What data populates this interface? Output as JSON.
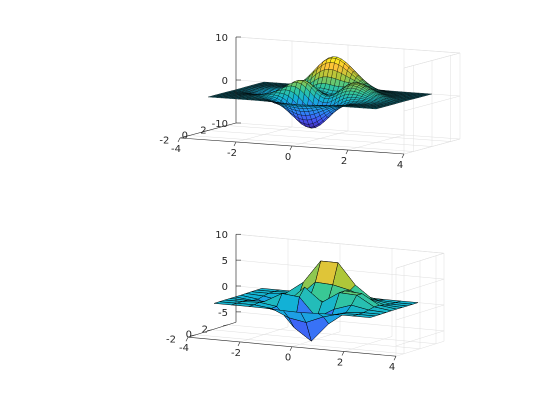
{
  "chart_data": [
    {
      "type": "surface",
      "title": "",
      "xlabel": "",
      "ylabel": "",
      "zlabel": "",
      "function": "peaks",
      "x_range": [
        -3,
        3
      ],
      "y_range": [
        -3,
        3
      ],
      "mesh_points": 40,
      "xlim": [
        -4,
        4
      ],
      "ylim": [
        -3,
        3
      ],
      "zlim": [
        -10,
        10
      ],
      "x_ticks": [
        -4,
        -2,
        0,
        2,
        4
      ],
      "y_ticks": [
        -2,
        0,
        2
      ],
      "z_ticks": [
        -10,
        0,
        10
      ],
      "x_tick_labels": [
        "-4",
        "-2",
        "0",
        "2",
        "4"
      ],
      "y_tick_labels": [
        "-2",
        "0",
        "2"
      ],
      "z_tick_labels": [
        "-10",
        "0",
        "10"
      ],
      "colormap": "parula",
      "grid": true,
      "edge_color": "#000000"
    },
    {
      "type": "surface",
      "title": "",
      "xlabel": "",
      "ylabel": "",
      "zlabel": "",
      "function": "peaks",
      "x_range": [
        -3,
        3
      ],
      "y_range": [
        -3,
        3
      ],
      "mesh_points": 10,
      "xlim": [
        -4,
        4
      ],
      "ylim": [
        -3,
        3
      ],
      "zlim": [
        -7,
        10
      ],
      "x_ticks": [
        -4,
        -2,
        0,
        2,
        4
      ],
      "y_ticks": [
        -2,
        0,
        2
      ],
      "z_ticks": [
        -5,
        0,
        5,
        10
      ],
      "x_tick_labels": [
        "-4",
        "-2",
        "0",
        "2",
        "4"
      ],
      "y_tick_labels": [
        "-2",
        "0",
        "2"
      ],
      "z_tick_labels": [
        "-5",
        "0",
        "5",
        "10"
      ],
      "colormap": "parula",
      "grid": true,
      "edge_color": "#000000"
    }
  ]
}
